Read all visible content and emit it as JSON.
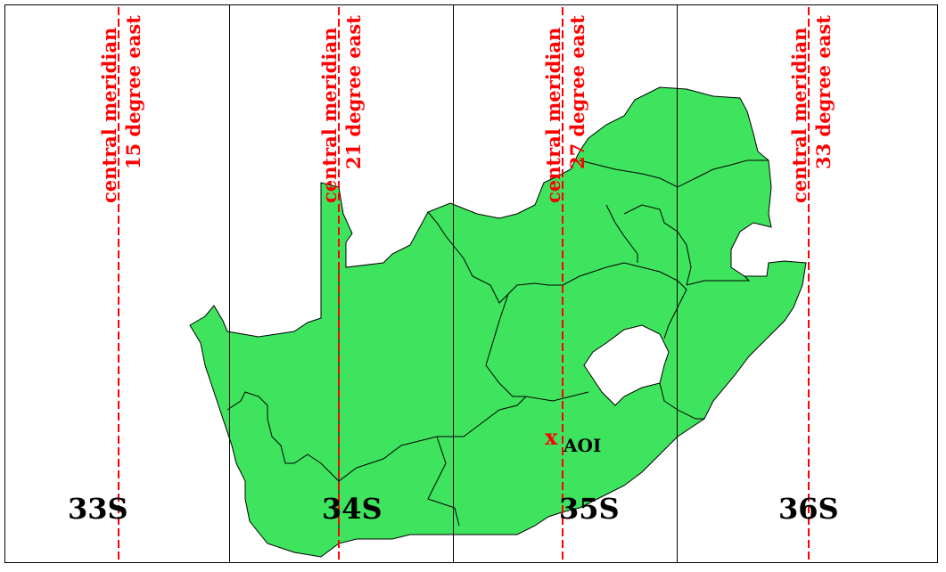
{
  "colors": {
    "land": "#3ee45e",
    "meridian": "#ff0000",
    "grid": "#000000",
    "marker": "#ff0000"
  },
  "meridians": [
    {
      "line1": "central meridian",
      "line2": "15 degree east"
    },
    {
      "line1": "central meridian",
      "line2": "21 degree east"
    },
    {
      "line1": "central meridian",
      "line2": "27 degree east"
    },
    {
      "line1": "central meridian",
      "line2": "33 degree east"
    }
  ],
  "zones": [
    "33S",
    "34S",
    "35S",
    "36S"
  ],
  "aoi": {
    "marker": "x",
    "label": "AOI"
  }
}
